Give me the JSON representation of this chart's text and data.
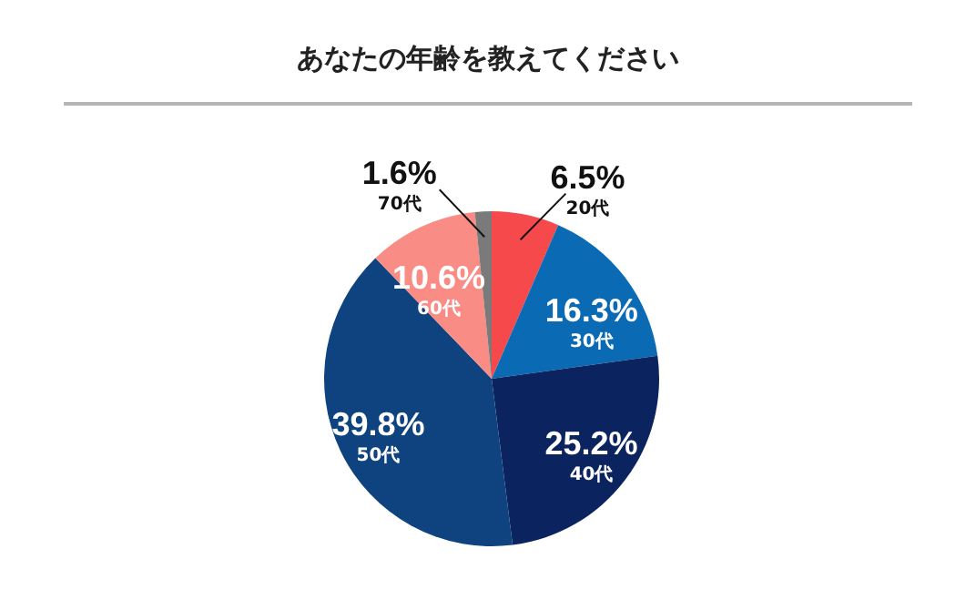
{
  "chart_data": {
    "type": "pie",
    "title": "あなたの年齢を教えてください",
    "categories": [
      "20代",
      "30代",
      "40代",
      "50代",
      "60代",
      "70代"
    ],
    "values": [
      6.5,
      16.3,
      25.2,
      39.8,
      10.6,
      1.6
    ],
    "value_labels": [
      "6.5%",
      "16.3%",
      "25.2%",
      "39.8%",
      "10.6%",
      "1.6%"
    ],
    "colors": [
      "#f5494c",
      "#0a6ab4",
      "#0b2460",
      "#0e437f",
      "#f98c85",
      "#7a7a7a"
    ]
  }
}
